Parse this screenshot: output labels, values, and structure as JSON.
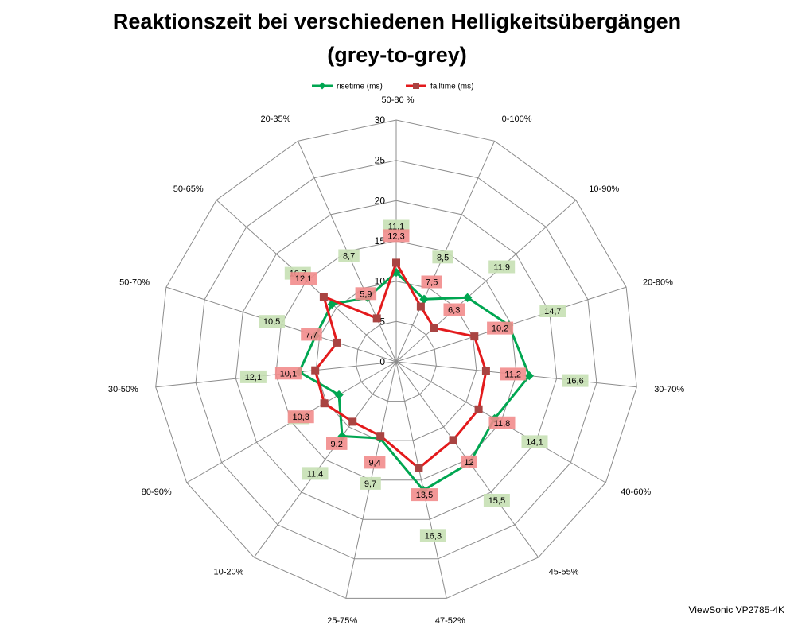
{
  "title_line1": "Reaktionszeit bei verschiedenen Helligkeitsübergängen",
  "title_line2": "(grey-to-grey)",
  "watermark": "ViewSonic VP2785-4K",
  "chart_data": {
    "type": "radar",
    "categories": [
      "50-80 %",
      "0-100%",
      "10-90%",
      "20-80%",
      "30-70%",
      "40-60%",
      "45-55%",
      "47-52%",
      "25-75%",
      "10-20%",
      "80-90%",
      "30-50%",
      "50-70%",
      "50-65%",
      "20-35%"
    ],
    "rlim": [
      0,
      30
    ],
    "rticks": [
      0,
      5,
      10,
      15,
      20,
      25,
      30
    ],
    "grid": true,
    "legend_position": "top",
    "series": [
      {
        "name": "risetime (ms)",
        "color": "#00A651",
        "label_bg": "#C6E0B4",
        "values": [
          11.1,
          8.5,
          11.9,
          14.7,
          16.6,
          14.1,
          15.5,
          16.3,
          9.7,
          11.4,
          8.2,
          12.1,
          10.5,
          10.7,
          8.7
        ],
        "labels": [
          "11,1",
          "8,5",
          "11,9",
          "14,7",
          "16,6",
          "14,1",
          "15,5",
          "16,3",
          "9,7",
          "11,4",
          "8,2",
          "12,1",
          "10,5",
          "10,7",
          "8,7"
        ]
      },
      {
        "name": "falltime (ms)",
        "color": "#E31A1C",
        "marker_color": "#A94442",
        "label_bg": "#F28C8C",
        "values": [
          12.3,
          7.5,
          6.3,
          10.2,
          11.2,
          11.8,
          12.0,
          13.5,
          9.4,
          9.2,
          10.3,
          10.1,
          7.7,
          12.1,
          5.9
        ],
        "labels": [
          "12,3",
          "7,5",
          "6,3",
          "10,2",
          "11,2",
          "11,8",
          "12",
          "13,5",
          "9,4",
          "9,2",
          "10,3",
          "10,1",
          "7,7",
          "12,1",
          "5,9"
        ]
      }
    ]
  }
}
